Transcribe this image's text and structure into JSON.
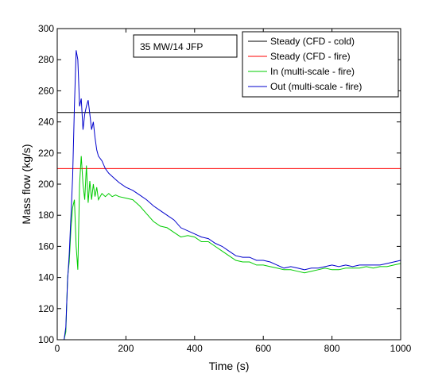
{
  "chart_data": {
    "type": "line",
    "title": "",
    "xlabel": "Time (s)",
    "ylabel": "Mass flow  (kg/s)",
    "xlim": [
      0,
      1000
    ],
    "ylim": [
      100,
      300
    ],
    "xticks": [
      0,
      200,
      400,
      600,
      800,
      1000
    ],
    "yticks": [
      100,
      120,
      140,
      160,
      180,
      200,
      220,
      240,
      260,
      280,
      300
    ],
    "grid": false,
    "annotation": "35 MW/14 JFP",
    "legend_position": "top-right",
    "series": [
      {
        "name": "Steady (CFD - cold)",
        "color": "#000000",
        "x": [
          0,
          1000
        ],
        "y": [
          246,
          246
        ]
      },
      {
        "name": "Steady (CFD - fire)",
        "color": "#ff0000",
        "x": [
          0,
          1000
        ],
        "y": [
          210,
          210
        ]
      },
      {
        "name": "In (multi-scale - fire)",
        "color": "#00cc00",
        "x": [
          20,
          25,
          30,
          35,
          40,
          45,
          50,
          55,
          60,
          65,
          70,
          75,
          80,
          85,
          90,
          95,
          100,
          105,
          110,
          115,
          120,
          130,
          140,
          150,
          160,
          170,
          180,
          200,
          220,
          240,
          260,
          280,
          300,
          320,
          340,
          360,
          380,
          400,
          420,
          440,
          460,
          480,
          500,
          520,
          540,
          560,
          580,
          600,
          620,
          640,
          660,
          680,
          700,
          720,
          740,
          760,
          780,
          800,
          820,
          840,
          860,
          880,
          900,
          920,
          940,
          960,
          980,
          1000
        ],
        "y": [
          100,
          105,
          140,
          150,
          172,
          185,
          190,
          160,
          145,
          200,
          218,
          200,
          190,
          212,
          188,
          202,
          190,
          200,
          192,
          198,
          190,
          194,
          192,
          194,
          192,
          193,
          192,
          191,
          190,
          186,
          181,
          176,
          173,
          172,
          169,
          166,
          167,
          166,
          163,
          163,
          160,
          157,
          154,
          151,
          150,
          150,
          148,
          148,
          147,
          146,
          145,
          145,
          144,
          143,
          144,
          145,
          146,
          145,
          145,
          146,
          146,
          146,
          147,
          146,
          147,
          147,
          148,
          149
        ]
      },
      {
        "name": "Out (multi-scale - fire)",
        "color": "#0000cc",
        "x": [
          20,
          25,
          30,
          35,
          40,
          45,
          50,
          55,
          60,
          65,
          70,
          75,
          80,
          85,
          90,
          95,
          100,
          105,
          110,
          115,
          120,
          130,
          140,
          150,
          160,
          170,
          180,
          200,
          220,
          240,
          260,
          280,
          300,
          320,
          340,
          360,
          380,
          400,
          420,
          440,
          460,
          480,
          500,
          520,
          540,
          560,
          580,
          600,
          620,
          640,
          660,
          680,
          700,
          720,
          740,
          760,
          780,
          800,
          820,
          840,
          860,
          880,
          900,
          920,
          940,
          960,
          980,
          1000
        ],
        "y": [
          100,
          108,
          138,
          155,
          180,
          205,
          250,
          286,
          280,
          250,
          255,
          235,
          245,
          250,
          254,
          245,
          235,
          240,
          230,
          222,
          218,
          215,
          210,
          207,
          205,
          203,
          201,
          198,
          196,
          193,
          190,
          186,
          183,
          180,
          177,
          172,
          170,
          168,
          166,
          165,
          162,
          160,
          157,
          154,
          153,
          153,
          151,
          151,
          150,
          148,
          146,
          147,
          146,
          145,
          146,
          146,
          147,
          148,
          147,
          148,
          147,
          148,
          148,
          148,
          148,
          149,
          150,
          151
        ]
      }
    ]
  }
}
